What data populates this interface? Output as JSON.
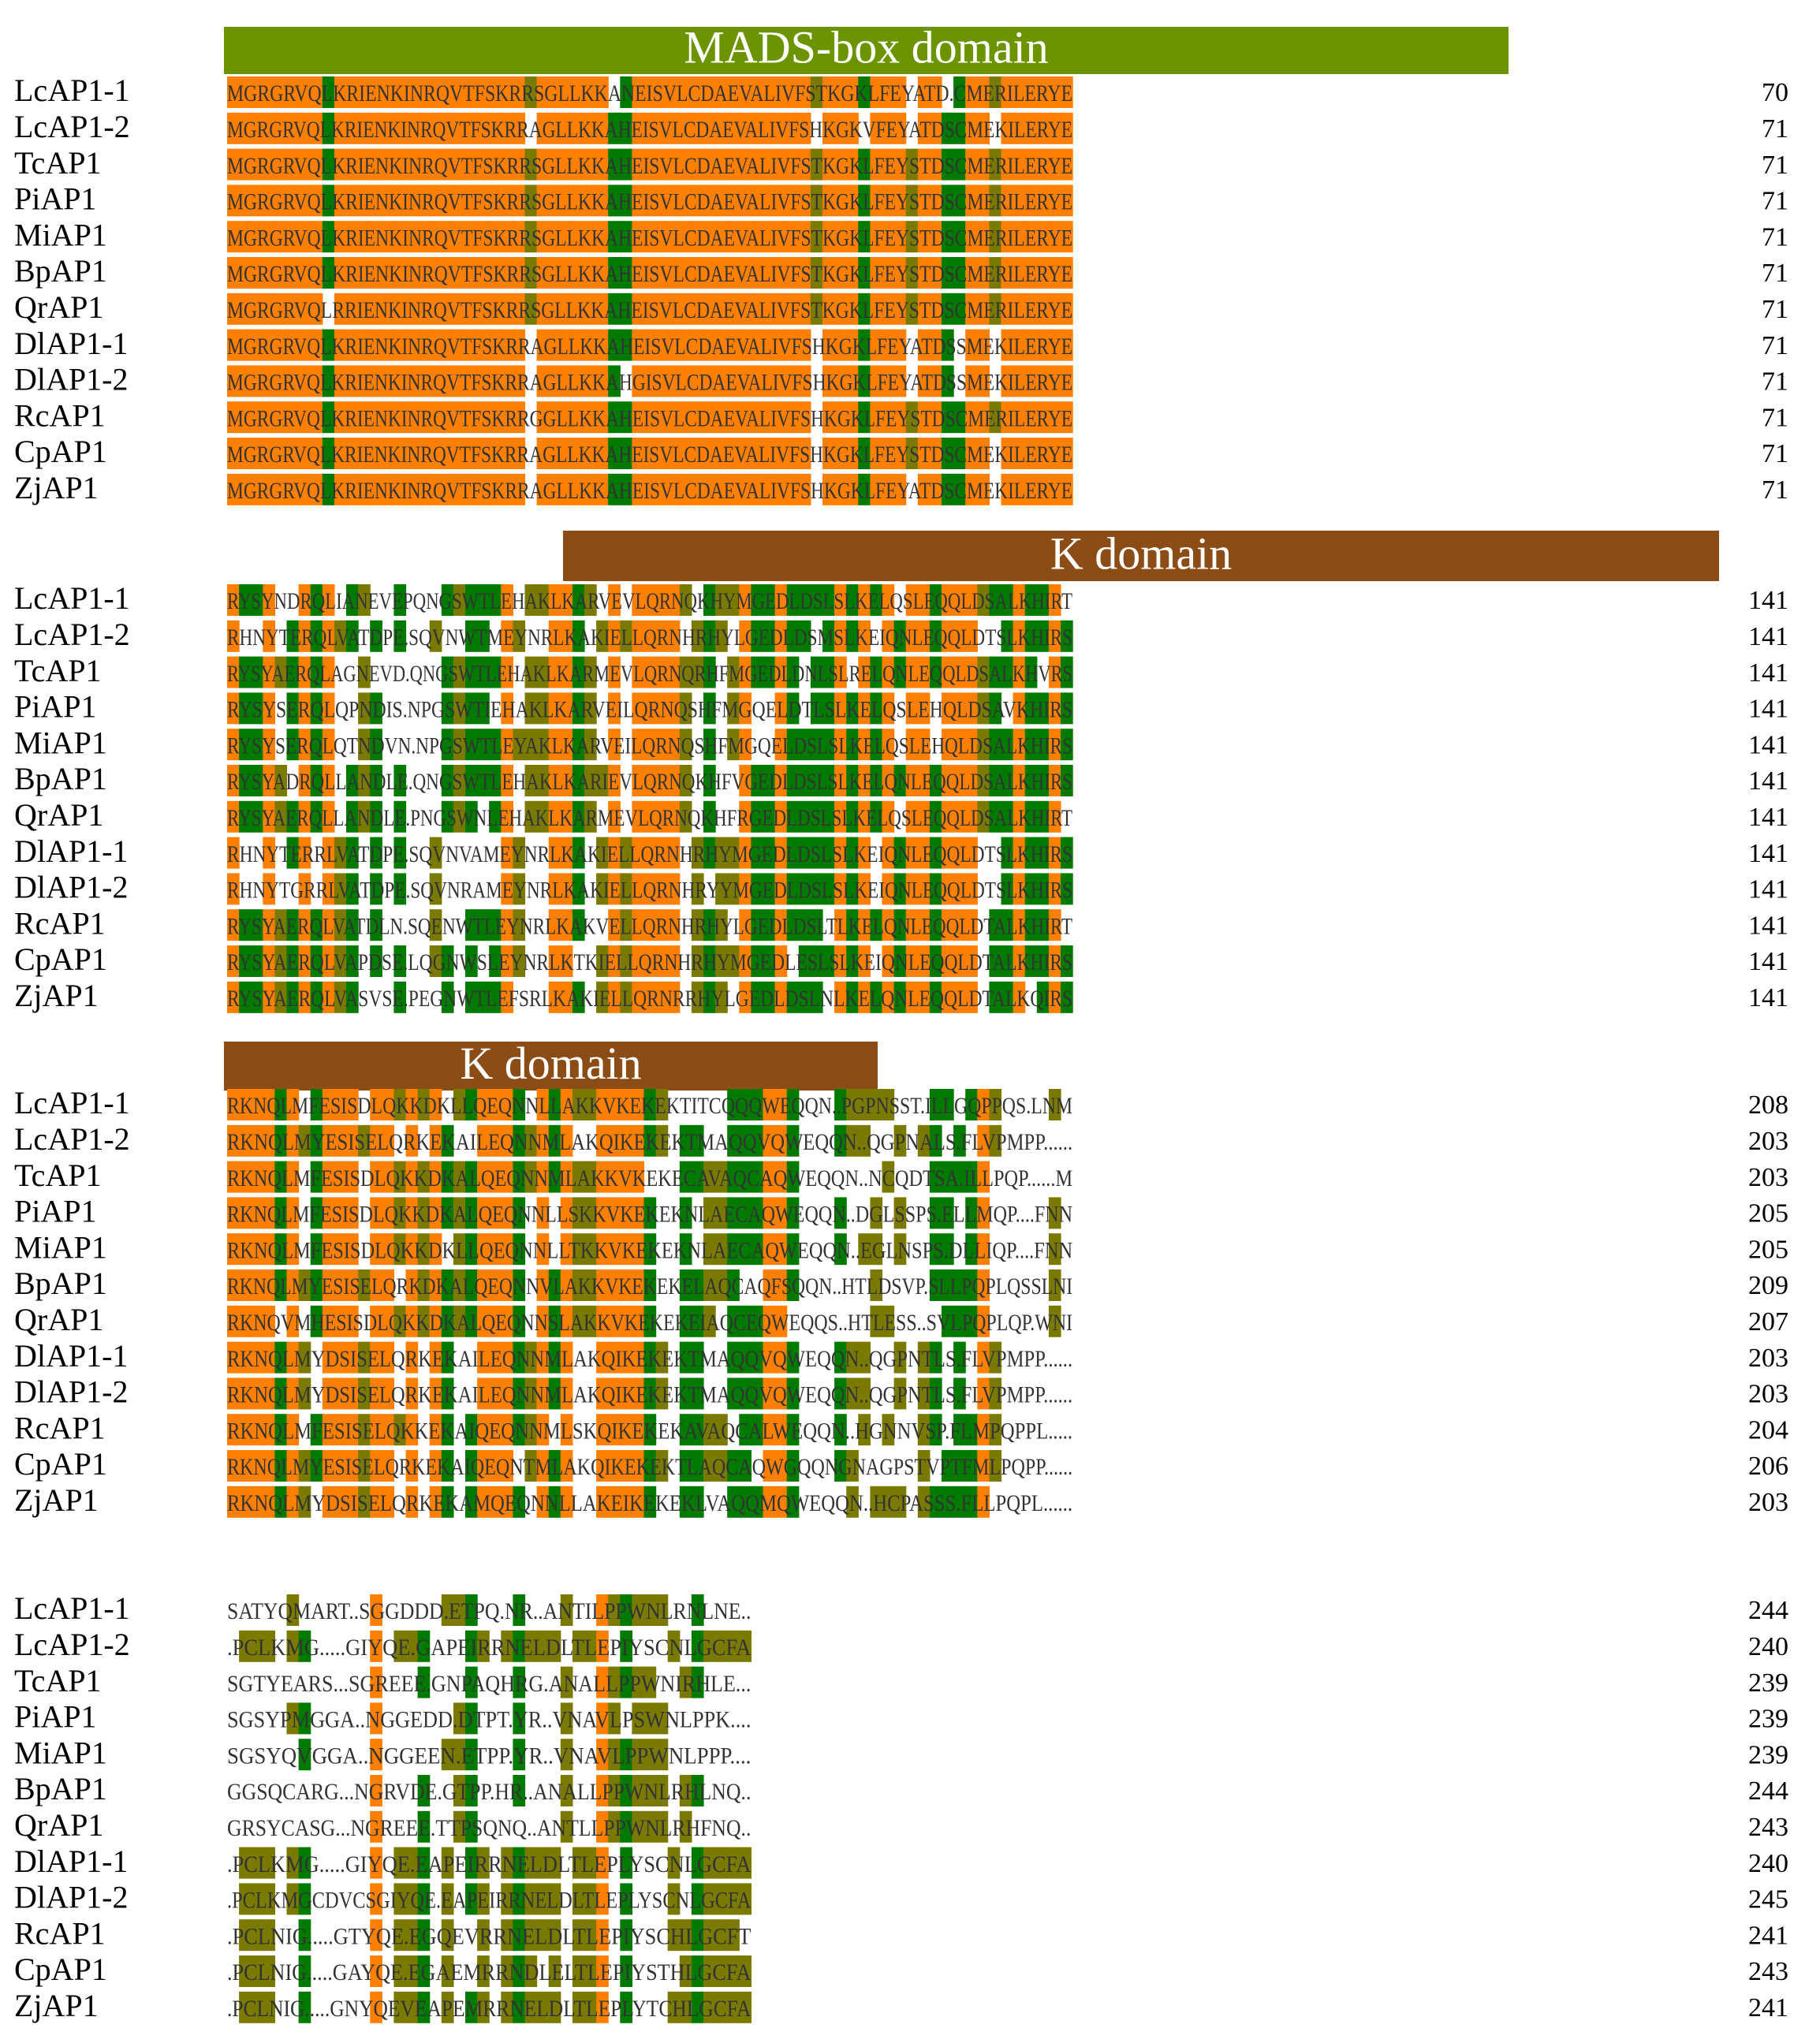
{
  "figure": {
    "kind": "multiple sequence alignment",
    "colors": {
      "identical": "#ff7f00",
      "conserved": "#007a00",
      "similar": "#7a7a00",
      "mads_banner": "#6b9400",
      "k_banner": "#8b4c16",
      "banner_text": "#ffffff",
      "residue_text": "#333333",
      "label_text": "#000000"
    }
  },
  "blocks": [
    {
      "domain_label": "MADS-box domain",
      "rows": [
        {
          "name": "LcAP1-1",
          "seq": "MGRGRVQLKRIENKINRQVTFSKRRSGLLKKANEISVLCDAEVALIVFSTKGKLFEYATD.CMERILERYE",
          "end": "70"
        },
        {
          "name": "LcAP1-2",
          "seq": "MGRGRVQLKRIENKINRQVTFSKRRAGLLKKAHEISVLCDAEVALIVFSHKGKVFEYATDSCMEKILERYE",
          "end": "71"
        },
        {
          "name": "TcAP1",
          "seq": "MGRGRVQLKRIENKINRQVTFSKRRSGLLKKAHEISVLCDAEVALIVFSTKGKLFEYSTDSCMERILERYE",
          "end": "71"
        },
        {
          "name": "PiAP1",
          "seq": "MGRGRVQLKRIENKINRQVTFSKRRSGLLKKAHEISVLCDAEVALIVFSTKGKLFEYSTDSCMERILERYE",
          "end": "71"
        },
        {
          "name": "MiAP1",
          "seq": "MGRGRVQLKRIENKINRQVTFSKRRSGLLKKAHEISVLCDAEVALIVFSTKGKLFEYSTDSCMERILERYE",
          "end": "71"
        },
        {
          "name": "BpAP1",
          "seq": "MGRGRVQLKRIENKINRQVTFSKRRSGLLKKAHEISVLCDAEVALIVFSTKGKLFEYSTDSCMERILERYE",
          "end": "71"
        },
        {
          "name": "QrAP1",
          "seq": "MGRGRVQLRRIENKINRQVTFSKRRSGLLKKAHEISVLCDAEVALIVFSTKGKLFEYSTDSCMERILERYE",
          "end": "71"
        },
        {
          "name": "DlAP1-1",
          "seq": "MGRGRVQLKRIENKINRQVTFSKRRAGLLKKAHEISVLCDAEVALIVFSHKGKLFEYATDSSMEKILERYE",
          "end": "71"
        },
        {
          "name": "DlAP1-2",
          "seq": "MGRGRVQLKRIENKINRQVTFSKRRAGLLKKAHGISVLCDAEVALIVFSHKGKLFEYATDSSMEKILERYE",
          "end": "71"
        },
        {
          "name": "RcAP1",
          "seq": "MGRGRVQLKRIENKINRQVTFSKRRGGLLKKAHEISVLCDAEVALIVFSHKGKLFEYSTDSCMERILERYE",
          "end": "71"
        },
        {
          "name": "CpAP1",
          "seq": "MGRGRVQLKRIENKINRQVTFSKRRAGLLKKAHEISVLCDAEVALIVFSHKGKLFEYSTDSCMEKILERYE",
          "end": "71"
        },
        {
          "name": "ZjAP1",
          "seq": "MGRGRVQLKRIENKINRQVTFSKRRAGLLKKAHEISVLCDAEVALIVFSHKGKLFEYATDSCMEKILERYE",
          "end": "71"
        }
      ]
    },
    {
      "domain_label": "K domain",
      "rows": [
        {
          "name": "LcAP1-1",
          "seq": "RYSYNDRQLIANEVEPQNGSWTLEHAKLKARVEVLQRNQKHYMGEDLDSLSLKELQSLEQQLDSALKHIRT",
          "end": "141"
        },
        {
          "name": "LcAP1-2",
          "seq": "RHNYTERQLVATDPE.SQVNWTMEYNRLKAKIELLQRNHRHYLGEDLDSMSLKEIQNLEQQLDTSLKHIRS",
          "end": "141"
        },
        {
          "name": "TcAP1",
          "seq": "RYSYAERQLAGNEVD.QNGSWTLEHAKLKARMEVLQRNQRHFMGEDLDNLSLRELQNLEQQLDSALKHVRS",
          "end": "141"
        },
        {
          "name": "PiAP1",
          "seq": "RYSYSERQLQPNDIS.NPGSWTIEHAKLKARVEILQRNQSHFMGQELDTLSLKELQSLEHQLDSAVKHIRS",
          "end": "141"
        },
        {
          "name": "MiAP1",
          "seq": "RYSYSERQLQTNDVN.NPGSWTLEYAKLKARVEILQRNQSHFMGQELDSLSLKELQSLEHQLDSALKHIRS",
          "end": "141"
        },
        {
          "name": "BpAP1",
          "seq": "RYSYADRQLLANDLE.QNGSWTLEHAKLKARIEVLQRNQKHFVGEDLDSLSLKELQNLEQQLDSALKHIRS",
          "end": "141"
        },
        {
          "name": "QrAP1",
          "seq": "RYSYAERQLLANDLE.PNGSWNLEHAKLKARMEVLQRNQKHFRGEDLDSLSLKELQSLEQQLDSALKHIRT",
          "end": "141"
        },
        {
          "name": "DlAP1-1",
          "seq": "RHNYTERRLVATDPE.SQVNVAMEYNRLKAKIELLQRNHRHYMGEDLDSLSLKEIQNLEQQLDTSLKHIRS",
          "end": "141"
        },
        {
          "name": "DlAP1-2",
          "seq": "RHNYTGRRLVATDPE.SQVNRAMEYNRLKAKIELLQRNHRYYMGEDLDSLSLKEIQNLEQQLDTSLKHIRS",
          "end": "141"
        },
        {
          "name": "RcAP1",
          "seq": "RYSYAERQLVATDLN.SQENWTLEYNRLKAKVELLQRNHRHYLGEDLDSLTLKELQNLEQQLDTALKHIRT",
          "end": "141"
        },
        {
          "name": "CpAP1",
          "seq": "RYSYAERQLVAPDSE.LQGNWSLEYNRLKTKIELLQRNHRHYMGEDLESLSLKEIQNLEQQLDTALKHIRS",
          "end": "141"
        },
        {
          "name": "ZjAP1",
          "seq": "RYSYAERQLVASVSE.PEGNWTLEFSRLKAKIELLQRNRRHYLGEDLDSLNLKELQNLEQQLDTALKQIRS",
          "end": "141"
        }
      ]
    },
    {
      "domain_label": "K domain",
      "rows": [
        {
          "name": "LcAP1-1",
          "seq": "RKNQLMFESISDLQKKDKLLQEQNNLLAKKVKEKEKTITCQQQWEQQN..PGPNSST.ILLGQPPQS.LNM",
          "end": "208"
        },
        {
          "name": "LcAP1-2",
          "seq": "RKNQLMYESISELQRKEKAILEQNNMLAKQIKEKEKTMAQQVQWEQQN..QGPNALS.FLVPMPP......",
          "end": "203"
        },
        {
          "name": "TcAP1",
          "seq": "RKNQLMFESISDLQKKDKALQEQNNMLAKKVKEKECAVAQCAQWEQQN..NCQDTSA.ILLPQP......M",
          "end": "203"
        },
        {
          "name": "PiAP1",
          "seq": "RKNQLMFESISDLQKKDKALQEQNNLLSKKVKEKEKNLAECAQWEQQN..DGLSSPS.ELLMQP....FNN",
          "end": "205"
        },
        {
          "name": "MiAP1",
          "seq": "RKNQLMFESISDLQKKDKLLQEQNNLLTKKVKEKEKNLAECAQWEQQN..EGLNSPS.DLLIQP....FNN",
          "end": "205"
        },
        {
          "name": "BpAP1",
          "seq": "RKNQLMYESISELQRKDKALQEQNNVLAKKVKEKEKELAQCAQFSQQN..HTLDSVP.SLLPQPLQSSLNI",
          "end": "209"
        },
        {
          "name": "QrAP1",
          "seq": "RKNQVMHESISDLQKKDKALQEQNNSLAKKVKEKEKEIAQCEQWEQQS..HTLESS..SVLPQPLQP.WNI",
          "end": "207"
        },
        {
          "name": "DlAP1-1",
          "seq": "RKNQLMYDSISELQRKEKAILEQNNMLAKQIKEKEKTMAQQVQWEQQN..QGPNTLS.FLVPMPP......",
          "end": "203"
        },
        {
          "name": "DlAP1-2",
          "seq": "RKNQLMYDSISELQRKEKAILEQNNMLAKQIKEKEKTMAQQVQWEQQN..QGPNTLS.FLVPMPP......",
          "end": "203"
        },
        {
          "name": "RcAP1",
          "seq": "RKNQLMFESISELQKKEKAIQEQNNMLSKQIKEKEKAVAQCALWEQQN..HGNNVSP.FLMPQPPL.....",
          "end": "204"
        },
        {
          "name": "CpAP1",
          "seq": "RKNQLMYESISELQRKEKAIQEQNTMLAKQIKEKEKTLAQCAQWGQQNGNAGPSTVPTFMLPQPP......",
          "end": "206"
        },
        {
          "name": "ZjAP1",
          "seq": "RKNQLMYDSISELQRKEKAMQEQNNLLAKEIKEKEKLVAQQMQWEQQN..HCPASSS.FLLPQPL......",
          "end": "203"
        }
      ]
    },
    {
      "domain_label": "",
      "rows": [
        {
          "name": "LcAP1-1",
          "seq": "SATYQMART..SGGDDD.ETPQ.NR..ANTILPPWNLRNLNE..",
          "end": "244"
        },
        {
          "name": "LcAP1-2",
          "seq": ".PCLKMG.....GIYQE.GAPEIRRNELDLTLEPIYSCNLGCFA",
          "end": "240"
        },
        {
          "name": "TcAP1",
          "seq": "SGTYEARS...SGREEE.GNPAQHRG.ANALLPPWNIRHLE...",
          "end": "239"
        },
        {
          "name": "PiAP1",
          "seq": "SGSYPMGGA..NGGEDD.DTPT.YR..VNAVLPSWNLPPK....",
          "end": "239"
        },
        {
          "name": "MiAP1",
          "seq": "SGSYQVGGA..NGGEEN.ETPP.YR..VNAVLPPWNLPPP....",
          "end": "239"
        },
        {
          "name": "BpAP1",
          "seq": "GGSQCARG...NGRVDE.GTPP.HR..ANALLPPWNLRHLNQ..",
          "end": "244"
        },
        {
          "name": "QrAP1",
          "seq": "GRSYCASG...NGREEE.TTPSQNQ..ANTLLPPWNLRHFNQ..",
          "end": "243"
        },
        {
          "name": "DlAP1-1",
          "seq": ".PCLKMG.....GIYQE.EAPEIRRNELDLTLEPLYSCNLGCFA",
          "end": "240"
        },
        {
          "name": "DlAP1-2",
          "seq": ".PCLKMGCDVCSGIYQE.EAPEIRRNELDLTLEPLYSCNLGCFA",
          "end": "245"
        },
        {
          "name": "RcAP1",
          "seq": ".PCLNIG.....GTYQE.EGQEVRRNELDLTLEPIYSCHLGCFT",
          "end": "241"
        },
        {
          "name": "CpAP1",
          "seq": ".PCLNIG.....GAYQE.EGAEMRRNDLELTLEPIYSTHLGCFA",
          "end": "243"
        },
        {
          "name": "ZjAP1",
          "seq": ".PCLNIG.....GNYQEVEAPEMRRNELDLTLEPLYTCHLGCFA",
          "end": "241"
        }
      ]
    }
  ]
}
